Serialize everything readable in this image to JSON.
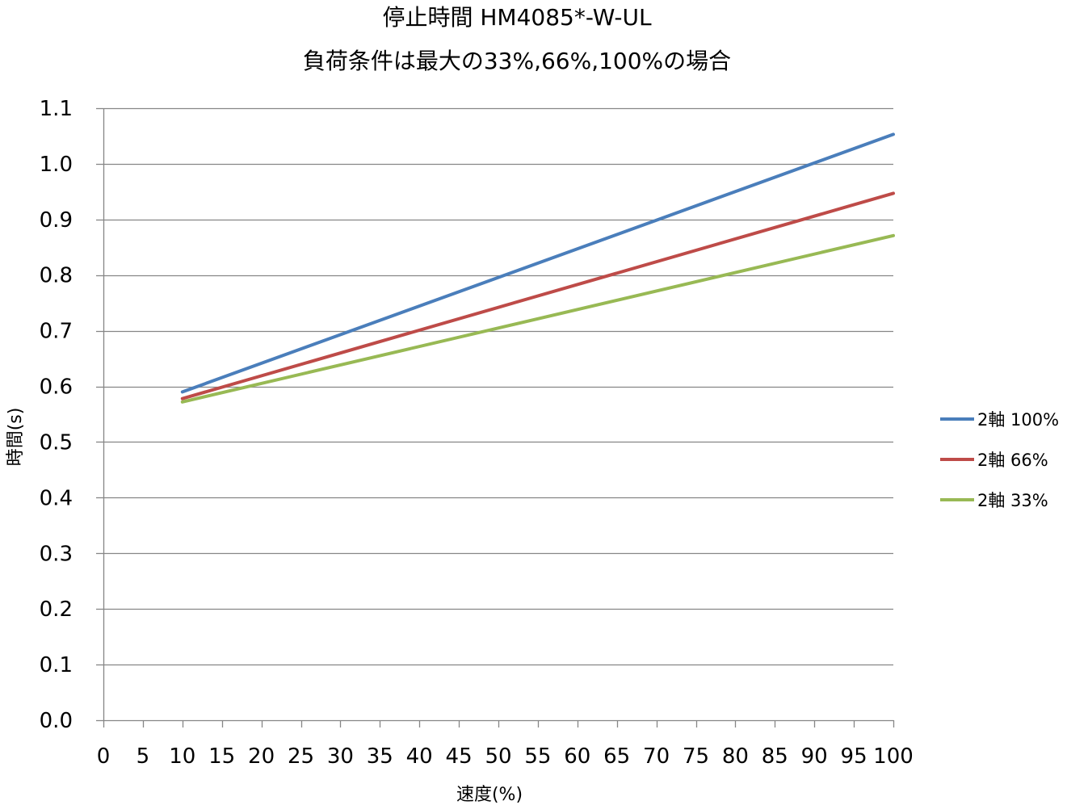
{
  "chart_data": {
    "type": "line",
    "title": "停止時間 HM4085*-W-UL",
    "subtitle": "負荷条件は最大の33%,66%,100%の場合",
    "xlabel": "速度(%)",
    "ylabel": "時間(s)",
    "xlim": [
      0,
      100
    ],
    "ylim": [
      0.0,
      1.1
    ],
    "x_ticks": [
      0,
      5,
      10,
      15,
      20,
      25,
      30,
      35,
      40,
      45,
      50,
      55,
      60,
      65,
      70,
      75,
      80,
      85,
      90,
      95,
      100
    ],
    "x_tick_labels": [
      "0",
      "5",
      "10",
      "15",
      "20",
      "25",
      "30",
      "35",
      "40",
      "45",
      "50",
      "55",
      "60",
      "65",
      "70",
      "75",
      "80",
      "85",
      "90",
      "95",
      "100"
    ],
    "y_ticks": [
      0.0,
      0.1,
      0.2,
      0.3,
      0.4,
      0.5,
      0.6,
      0.7,
      0.8,
      0.9,
      1.0,
      1.1
    ],
    "y_tick_labels": [
      "0.0",
      "0.1",
      "0.2",
      "0.3",
      "0.4",
      "0.5",
      "0.6",
      "0.7",
      "0.8",
      "0.9",
      "1.0",
      "1.1"
    ],
    "grid": "horizontal",
    "legend_position": "right",
    "series": [
      {
        "name": "2軸 100%",
        "color": "#4a7ebb",
        "x": [
          10,
          100
        ],
        "y": [
          0.59,
          1.053
        ]
      },
      {
        "name": "2軸 66%",
        "color": "#be4b48",
        "x": [
          10,
          100
        ],
        "y": [
          0.578,
          0.947
        ]
      },
      {
        "name": "2軸 33%",
        "color": "#98b954",
        "x": [
          10,
          100
        ],
        "y": [
          0.572,
          0.871
        ]
      }
    ]
  }
}
